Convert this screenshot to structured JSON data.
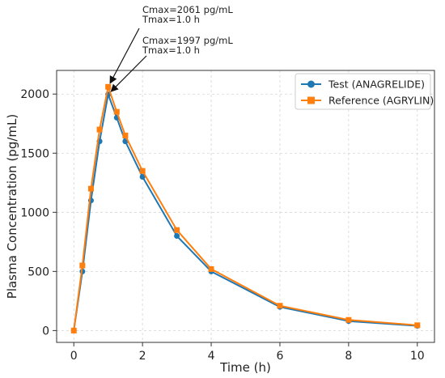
{
  "chart_data": {
    "type": "line",
    "title": "",
    "xlabel": "Time (h)",
    "ylabel": "Plasma Concentration (pg/mL)",
    "xlim": [
      -0.5,
      10.5
    ],
    "ylim": [
      -100,
      2200
    ],
    "xticks": [
      0,
      2,
      4,
      6,
      8,
      10
    ],
    "yticks": [
      0,
      500,
      1000,
      1500,
      2000
    ],
    "grid": true,
    "legend_position": "top-right",
    "series": [
      {
        "name": "Test (ANAGRELIDE)",
        "color": "#1f77b4",
        "marker": "circle",
        "x": [
          0,
          0.25,
          0.5,
          0.75,
          1.0,
          1.25,
          1.5,
          2,
          3,
          4,
          6,
          8,
          10
        ],
        "y": [
          0,
          500,
          1100,
          1600,
          1997,
          1800,
          1600,
          1300,
          800,
          500,
          200,
          80,
          40
        ]
      },
      {
        "name": "Reference (AGRYLIN)",
        "color": "#ff7f0e",
        "marker": "square",
        "x": [
          0,
          0.25,
          0.5,
          0.75,
          1.0,
          1.25,
          1.5,
          2,
          3,
          4,
          6,
          8,
          10
        ],
        "y": [
          0,
          550,
          1200,
          1700,
          2061,
          1850,
          1650,
          1350,
          850,
          520,
          210,
          90,
          45
        ]
      }
    ],
    "annotations": [
      {
        "lines": [
          "Cmax=2061 pg/mL",
          "Tmax=1.0 h"
        ],
        "point": [
          1.0,
          2061
        ]
      },
      {
        "lines": [
          "Cmax=1997 pg/mL",
          "Tmax=1.0 h"
        ],
        "point": [
          1.0,
          1997
        ]
      }
    ]
  }
}
